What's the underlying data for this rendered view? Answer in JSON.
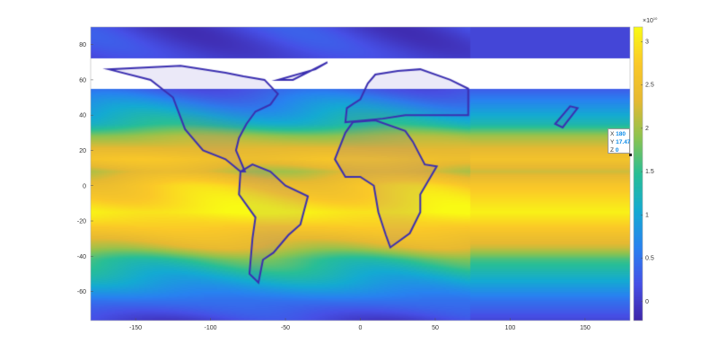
{
  "chart_data": {
    "type": "heatmap",
    "title": "",
    "xlabel": "",
    "ylabel": "",
    "xlim": [
      -180,
      180
    ],
    "ylim": [
      -76.5,
      90
    ],
    "x_ticks": [
      -150,
      -100,
      -50,
      0,
      50,
      100,
      150
    ],
    "y_ticks": [
      80,
      60,
      40,
      20,
      0,
      -20,
      -40,
      -60
    ],
    "colormap": "parula",
    "colorbar": {
      "exponent_label": "×10",
      "exponent": "10",
      "ticks": [
        0,
        0.5,
        1,
        1.5,
        2,
        2.5,
        3
      ],
      "clim": [
        -0.22,
        3.17
      ]
    },
    "latitude_profile": {
      "lat": [
        90,
        72,
        66,
        55,
        45,
        35,
        28,
        15,
        8,
        0,
        -15,
        -25,
        -35,
        -42,
        -55,
        -65,
        -76.5
      ],
      "value": [
        0.1,
        0.1,
        null,
        0.3,
        0.8,
        1.3,
        2.0,
        2.6,
        2.2,
        2.7,
        3.1,
        2.7,
        2.2,
        1.6,
        1.0,
        0.5,
        0.1
      ]
    },
    "datatip": {
      "x_label": "X",
      "x": "180",
      "y_label": "Y",
      "y": "17.47",
      "z_label": "Z",
      "z": "0"
    }
  }
}
